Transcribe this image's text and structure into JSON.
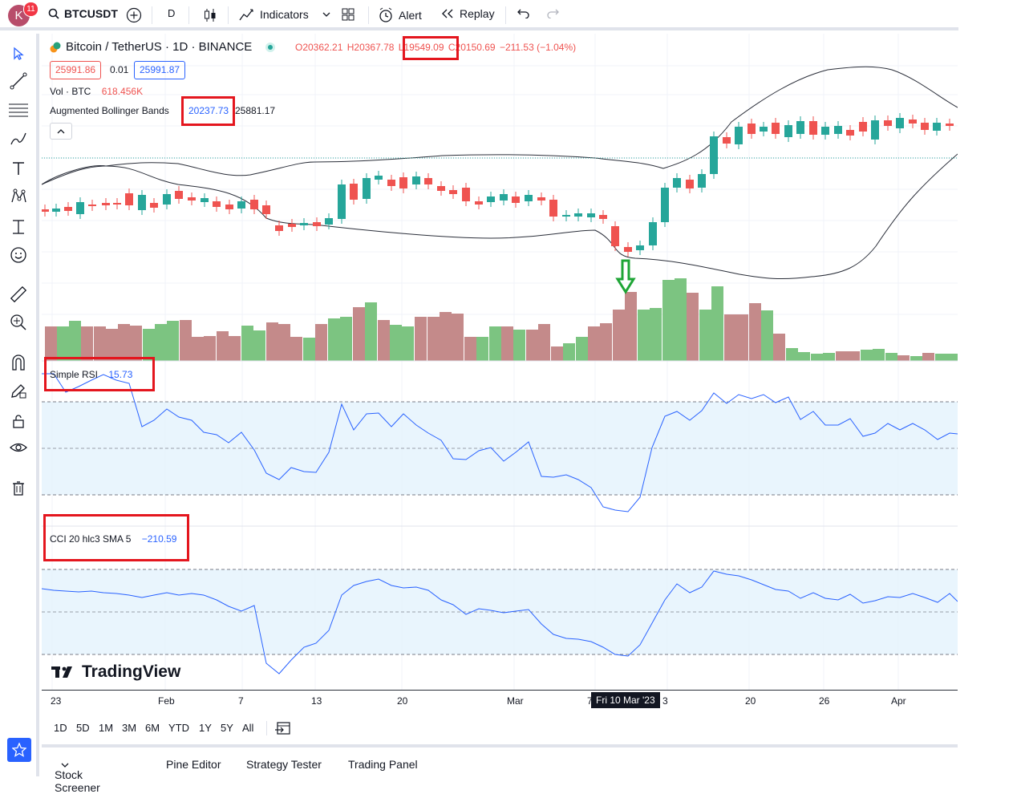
{
  "user": {
    "avatar_letter": "K",
    "notifications": "11"
  },
  "toolbar": {
    "symbol": "BTCUSDT",
    "interval": "D",
    "indicators_label": "Indicators",
    "alert_label": "Alert",
    "replay_label": "Replay"
  },
  "legend": {
    "title": "Bitcoin / TetherUS · 1D · BINANCE",
    "open": "O20362.21",
    "high": "H20367.78",
    "low": "L19549.09",
    "close": "C20150.69",
    "change": "−211.53 (−1.04%)",
    "sell_price": "25991.86",
    "spread": "0.01",
    "buy_price": "25991.87",
    "vol_label": "Vol · BTC",
    "vol_value": "618.456K",
    "bb_label": "Augmented Bollinger Bands",
    "bb_value1": "20237.73",
    "bb_value2": "25881.17"
  },
  "rsi": {
    "label": "Simple RSI",
    "value": "15.73"
  },
  "cci": {
    "label": "CCI 20 hlc3 SMA 5",
    "value": "−210.59"
  },
  "xaxis": {
    "labels": [
      "23",
      "Feb",
      "7",
      "13",
      "20",
      "Mar",
      "7",
      "3",
      "20",
      "26",
      "Apr"
    ],
    "crosshair": "Fri 10 Mar '23"
  },
  "ranges": [
    "1D",
    "5D",
    "1M",
    "3M",
    "6M",
    "YTD",
    "1Y",
    "5Y",
    "All"
  ],
  "bottom_tabs": [
    "Stock Screener",
    "Pine Editor",
    "Strategy Tester",
    "Trading Panel"
  ],
  "brand": "TradingView",
  "colors": {
    "up": "#26a69a",
    "down": "#ef5350",
    "rsi_line": "#2962ff",
    "band_fill": "#e3f2fd",
    "annotation": "#e4161e",
    "arrow": "#1ea535"
  },
  "icons": [
    "cursor-icon",
    "trendline-icon",
    "fib-icon",
    "brush-icon",
    "text-icon",
    "pattern-icon",
    "measure-icon",
    "emoji-icon",
    "ruler-icon",
    "zoom-icon",
    "magnet-icon",
    "lock-icon",
    "eye-icon",
    "trash-icon",
    "star-icon"
  ]
}
